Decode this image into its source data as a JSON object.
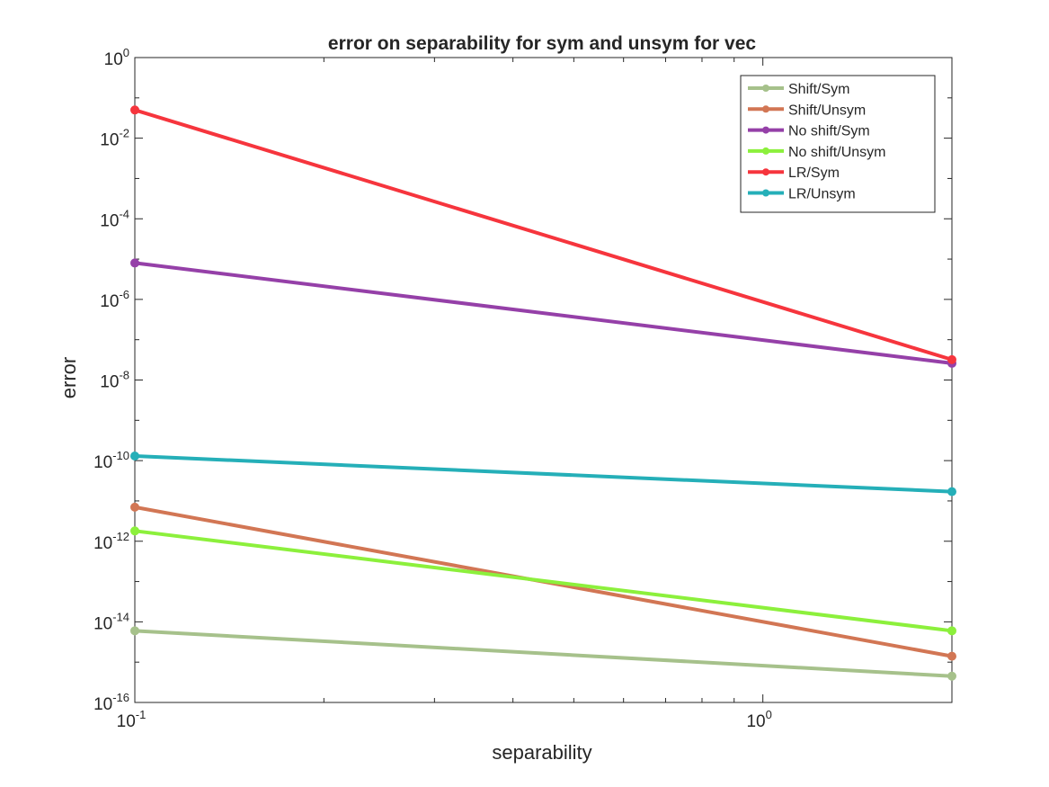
{
  "chart_data": {
    "type": "line",
    "title": "error on separability for sym and unsym for vec",
    "xlabel": "separability",
    "ylabel": "error",
    "xscale": "log",
    "yscale": "log",
    "xlim": [
      0.1,
      2
    ],
    "ylim": [
      1e-16,
      1
    ],
    "x_ticks": [
      {
        "value": 0.1,
        "base": "10",
        "exp": "-1"
      },
      {
        "value": 1,
        "base": "10",
        "exp": "0"
      }
    ],
    "y_ticks": [
      {
        "value": 1,
        "base": "10",
        "exp": "0"
      },
      {
        "value": 0.01,
        "base": "10",
        "exp": "-2"
      },
      {
        "value": 0.0001,
        "base": "10",
        "exp": "-4"
      },
      {
        "value": 1e-06,
        "base": "10",
        "exp": "-6"
      },
      {
        "value": 1e-08,
        "base": "10",
        "exp": "-8"
      },
      {
        "value": 1e-10,
        "base": "10",
        "exp": "-10"
      },
      {
        "value": 1e-12,
        "base": "10",
        "exp": "-12"
      },
      {
        "value": 1e-14,
        "base": "10",
        "exp": "-14"
      },
      {
        "value": 1e-16,
        "base": "10",
        "exp": "-16"
      }
    ],
    "x": [
      0.1,
      2
    ],
    "series": [
      {
        "name": "Shift/Sym",
        "color": "#a6c18b",
        "values": [
          6e-15,
          4.5e-16
        ]
      },
      {
        "name": "Shift/Unsym",
        "color": "#d27654",
        "values": [
          7e-12,
          1.4e-15
        ]
      },
      {
        "name": "No shift/Sym",
        "color": "#9540a8",
        "values": [
          8e-06,
          2.6e-08
        ]
      },
      {
        "name": "No shift/Unsym",
        "color": "#8cf03c",
        "values": [
          1.8e-12,
          6e-15
        ]
      },
      {
        "name": "LR/Sym",
        "color": "#f6353d",
        "values": [
          0.05,
          3.2e-08
        ]
      },
      {
        "name": "LR/Unsym",
        "color": "#25afb8",
        "values": [
          1.3e-10,
          1.7e-11
        ]
      }
    ],
    "legend_position": "top-right",
    "grid": false
  }
}
